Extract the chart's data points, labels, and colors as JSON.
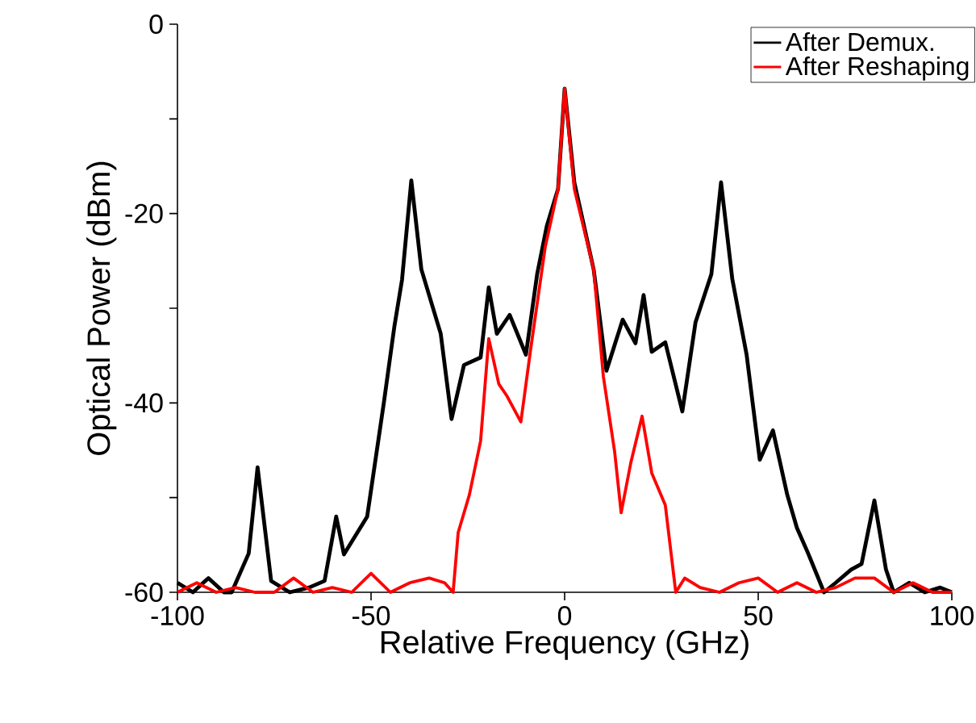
{
  "chart_data": {
    "type": "line",
    "xlabel": "Relative Frequency (GHz)",
    "ylabel": "Optical Power (dBm)",
    "xlim": [
      -100,
      100
    ],
    "ylim": [
      -60,
      0
    ],
    "xticks": [
      -100,
      -50,
      0,
      50,
      100
    ],
    "yticks": [
      0,
      {
        "value": -10,
        "label": null
      },
      -20,
      {
        "value": -30,
        "label": null
      },
      -40,
      {
        "value": -50,
        "label": null
      },
      -60
    ],
    "legend": "top right",
    "series": [
      {
        "name": "After Demux.",
        "color": "#000000",
        "x": [
          -100,
          -96,
          -92,
          -88,
          -86,
          -81.6,
          -79.3,
          -75.8,
          -71,
          -66,
          -62,
          -59,
          -57,
          -51,
          -46.7,
          -44,
          -42,
          -39.6,
          -37,
          -32,
          -29.2,
          -26,
          -21.7,
          -19.6,
          -17.5,
          -14.2,
          -10,
          -7.1,
          -4.6,
          -1.7,
          0,
          2.5,
          7.5,
          10.8,
          15,
          18.3,
          20.4,
          22.5,
          26,
          30.4,
          33.8,
          37.9,
          40.4,
          43.3,
          47,
          50.4,
          53.8,
          57.5,
          60,
          62.9,
          67,
          70,
          74,
          76.7,
          80,
          83,
          85,
          89,
          93,
          97,
          100
        ],
        "values": [
          -59,
          -60,
          -58.5,
          -60,
          -60,
          -55.9,
          -46.8,
          -58.8,
          -60,
          -59.5,
          -58.8,
          -52,
          -56,
          -52,
          -40,
          -32,
          -27,
          -16.5,
          -25.9,
          -32.7,
          -41.7,
          -36,
          -35.2,
          -27.8,
          -32.7,
          -30.7,
          -34.9,
          -26.4,
          -21.3,
          -17.4,
          -6.8,
          -16.7,
          -25.9,
          -36.6,
          -31.2,
          -33.7,
          -28.6,
          -34.6,
          -33.6,
          -40.9,
          -31.5,
          -26.4,
          -16.7,
          -26.9,
          -34.9,
          -46,
          -42.9,
          -49.7,
          -53.2,
          -55.9,
          -60,
          -59,
          -57.6,
          -57,
          -50.3,
          -57.6,
          -60,
          -59,
          -60,
          -59.5,
          -60
        ]
      },
      {
        "name": "After Reshaping",
        "color": "#ff0000",
        "x": [
          -100,
          -95,
          -90,
          -85,
          -80,
          -75,
          -70,
          -65,
          -60,
          -55,
          -50,
          -45,
          -40,
          -35,
          -31,
          -28.8,
          -27.5,
          -24.6,
          -21.7,
          -19.6,
          -17,
          -15,
          -11.3,
          -8.8,
          -5,
          -1.7,
          0,
          2.5,
          7.5,
          10,
          12.9,
          14.6,
          17.1,
          20,
          22.5,
          26,
          28.7,
          31,
          35,
          40,
          45,
          50,
          55,
          60,
          65,
          70,
          75,
          80,
          85,
          90,
          95,
          100
        ],
        "values": [
          -60,
          -59,
          -60,
          -59.5,
          -60,
          -60,
          -58.5,
          -60,
          -59.5,
          -60,
          -58,
          -60,
          -59,
          -58.5,
          -59,
          -60,
          -53.7,
          -49.7,
          -44,
          -33.2,
          -38,
          -39.2,
          -42,
          -34.4,
          -23.5,
          -17.4,
          -6.8,
          -17.4,
          -25.9,
          -37.2,
          -45.1,
          -51.6,
          -46.3,
          -41.4,
          -47.4,
          -50.8,
          -60,
          -58.5,
          -59.5,
          -60,
          -59,
          -58.5,
          -60,
          -59,
          -60,
          -59.5,
          -58.5,
          -58.5,
          -60,
          -59,
          -60,
          -60
        ]
      }
    ]
  }
}
